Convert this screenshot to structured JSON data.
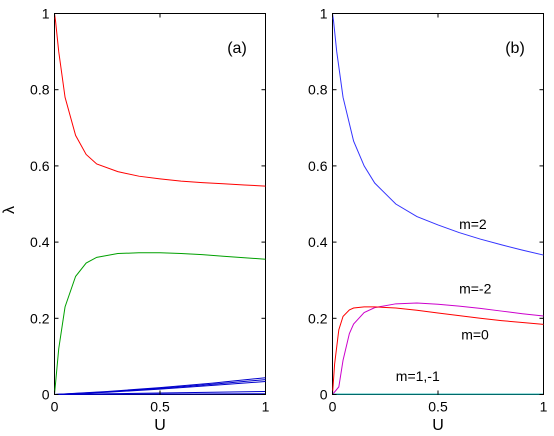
{
  "chart_data": [
    {
      "type": "line",
      "panel_label": "(a)",
      "xlabel": "U",
      "ylabel": "λ",
      "xlim": [
        0,
        1
      ],
      "ylim": [
        0,
        1
      ],
      "xticks": [
        0,
        0.5,
        1
      ],
      "yticks": [
        0,
        0.2,
        0.4,
        0.6,
        0.8,
        1
      ],
      "xtick_labels": [
        "0",
        "0.5",
        "1"
      ],
      "ytick_labels": [
        "0",
        "0.2",
        "0.4",
        "0.6",
        "0.8",
        "1"
      ],
      "grid": false,
      "series": [
        {
          "color": "#ff0000",
          "x": [
            0,
            0.005,
            0.02,
            0.05,
            0.1,
            0.15,
            0.2,
            0.3,
            0.4,
            0.5,
            0.6,
            0.7,
            0.8,
            0.9,
            1.0
          ],
          "y": [
            1.0,
            0.98,
            0.9,
            0.78,
            0.68,
            0.63,
            0.605,
            0.585,
            0.573,
            0.566,
            0.56,
            0.556,
            0.553,
            0.55,
            0.547
          ]
        },
        {
          "color": "#00a000",
          "x": [
            0,
            0.02,
            0.05,
            0.1,
            0.15,
            0.2,
            0.3,
            0.4,
            0.5,
            0.6,
            0.7,
            0.8,
            0.9,
            1.0
          ],
          "y": [
            0.0,
            0.12,
            0.23,
            0.31,
            0.345,
            0.36,
            0.37,
            0.372,
            0.372,
            0.37,
            0.367,
            0.363,
            0.359,
            0.355
          ]
        },
        {
          "color": "#0000cc",
          "x": [
            0,
            0.25,
            0.5,
            0.75,
            1.0
          ],
          "y": [
            0.0,
            0.008,
            0.018,
            0.03,
            0.044
          ]
        },
        {
          "color": "#0000cc",
          "x": [
            0,
            0.25,
            0.5,
            0.75,
            1.0
          ],
          "y": [
            0.0,
            0.007,
            0.016,
            0.027,
            0.039
          ]
        },
        {
          "color": "#0000cc",
          "x": [
            0,
            0.25,
            0.5,
            0.75,
            1.0
          ],
          "y": [
            0.0,
            0.006,
            0.014,
            0.024,
            0.034
          ]
        },
        {
          "color": "#0000cc",
          "x": [
            0,
            0.25,
            0.5,
            0.75,
            1.0
          ],
          "y": [
            0.0,
            0.002,
            0.004,
            0.006,
            0.008
          ]
        },
        {
          "color": "#0000cc",
          "x": [
            0,
            0.5,
            1.0
          ],
          "y": [
            0.0,
            0.001,
            0.002
          ]
        }
      ]
    },
    {
      "type": "line",
      "panel_label": "(b)",
      "xlabel": "U",
      "ylabel": "",
      "xlim": [
        0,
        1
      ],
      "ylim": [
        0,
        1
      ],
      "xticks": [
        0,
        0.5,
        1
      ],
      "yticks": [
        0,
        0.2,
        0.4,
        0.6,
        0.8,
        1
      ],
      "xtick_labels": [
        "0",
        "0.5",
        "1"
      ],
      "ytick_labels": [
        "0",
        "0.2",
        "0.4",
        "0.6",
        "0.8",
        "1"
      ],
      "grid": false,
      "series": [
        {
          "name": "m=2",
          "color": "#3333ff",
          "x": [
            0,
            0.005,
            0.02,
            0.05,
            0.1,
            0.15,
            0.2,
            0.3,
            0.4,
            0.5,
            0.6,
            0.7,
            0.8,
            0.9,
            1.0
          ],
          "y": [
            1.0,
            0.98,
            0.9,
            0.78,
            0.665,
            0.6,
            0.555,
            0.5,
            0.467,
            0.445,
            0.425,
            0.408,
            0.393,
            0.379,
            0.366
          ]
        },
        {
          "name": "m=-2",
          "color": "#cc00cc",
          "x": [
            0,
            0.03,
            0.05,
            0.08,
            0.1,
            0.15,
            0.2,
            0.3,
            0.4,
            0.5,
            0.6,
            0.7,
            0.8,
            0.9,
            1.0
          ],
          "y": [
            0.0,
            0.02,
            0.09,
            0.16,
            0.185,
            0.215,
            0.228,
            0.238,
            0.24,
            0.237,
            0.232,
            0.226,
            0.219,
            0.212,
            0.206
          ]
        },
        {
          "name": "m=0",
          "color": "#ff0000",
          "x": [
            0,
            0.01,
            0.03,
            0.05,
            0.08,
            0.1,
            0.15,
            0.2,
            0.3,
            0.4,
            0.5,
            0.6,
            0.7,
            0.8,
            0.9,
            1.0
          ],
          "y": [
            0.0,
            0.08,
            0.17,
            0.205,
            0.222,
            0.227,
            0.23,
            0.23,
            0.227,
            0.221,
            0.214,
            0.207,
            0.2,
            0.194,
            0.189,
            0.184
          ]
        },
        {
          "name": "m=1,-1",
          "color": "#00aaaa",
          "x": [
            0,
            1.0
          ],
          "y": [
            0.001,
            0.001
          ]
        }
      ],
      "annotations": [
        {
          "text": "m=2",
          "x": 0.6,
          "y": 0.435
        },
        {
          "text": "m=-2",
          "x": 0.6,
          "y": 0.265
        },
        {
          "text": "m=0",
          "x": 0.61,
          "y": 0.145
        },
        {
          "text": "m=1,-1",
          "x": 0.3,
          "y": 0.035
        }
      ]
    }
  ]
}
